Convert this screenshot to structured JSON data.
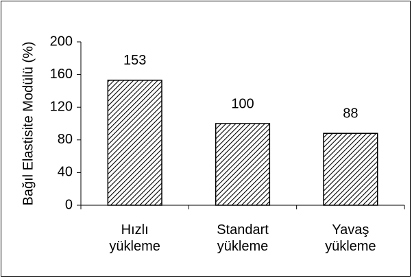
{
  "chart_data": {
    "type": "bar",
    "y_label": "Bağıl Elastisite Modülü (%)",
    "categories": [
      "Hızlı yükleme",
      "Standart yükleme",
      "Yavaş yükleme"
    ],
    "values": [
      153,
      100,
      88
    ],
    "color": "#000000",
    "ylim": [
      0,
      200
    ],
    "yticks": [
      0,
      40,
      80,
      120,
      160,
      200
    ],
    "grid": false
  }
}
